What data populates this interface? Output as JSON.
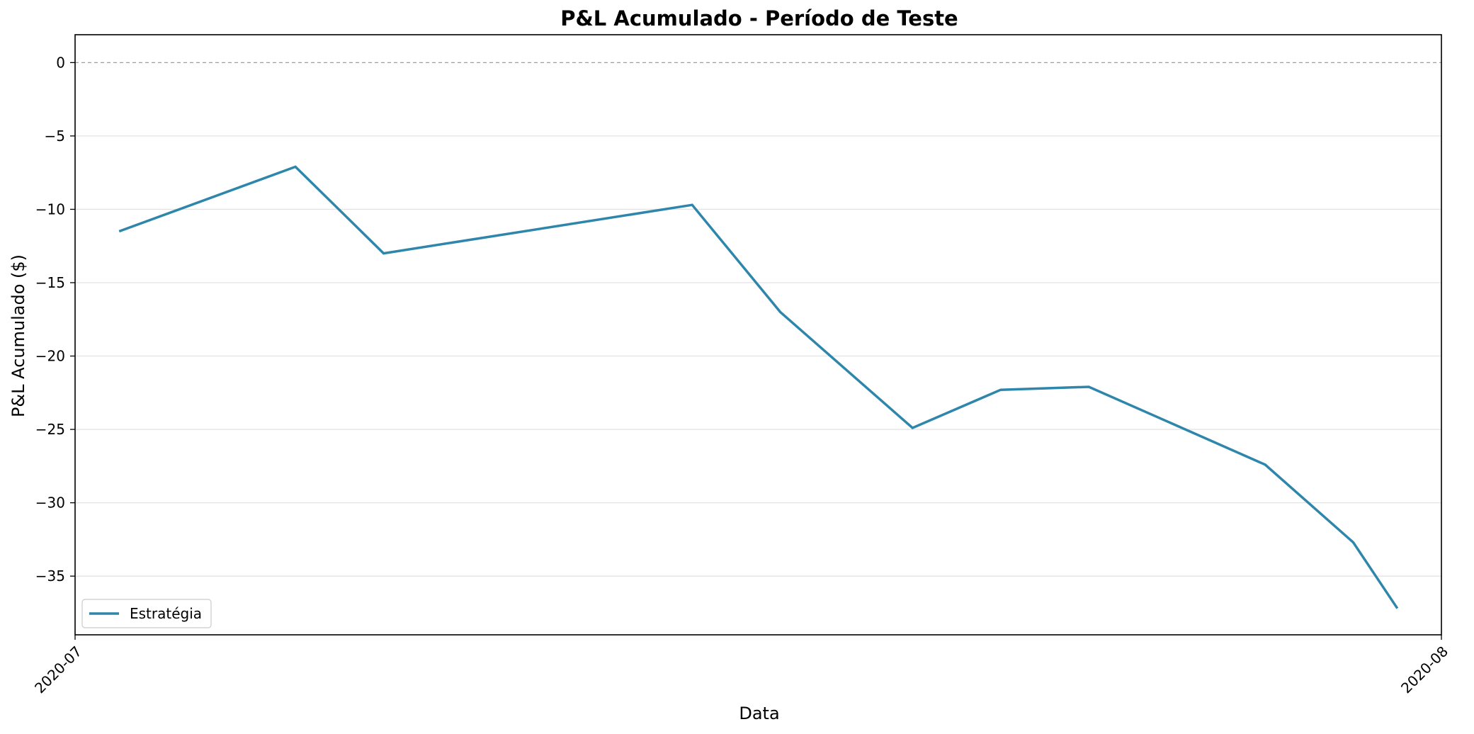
{
  "chart_data": {
    "type": "line",
    "title": "P&L Acumulado - Período de Teste",
    "xlabel": "Data",
    "ylabel": "P&L Acumulado ($)",
    "x_ticks": [
      "2020-07",
      "2020-08"
    ],
    "xlim": [
      "2020-07-01",
      "2020-08-01"
    ],
    "y_ticks": [
      0,
      -5,
      -10,
      -15,
      -20,
      -25,
      -30,
      -35
    ],
    "ylim": [
      -39.0,
      1.9
    ],
    "grid": "horizontal",
    "reference_line": 0,
    "legend_position": "lower left",
    "series": [
      {
        "name": "Estratégia",
        "color": "#2e86ab",
        "x": [
          "2020-07-02",
          "2020-07-06",
          "2020-07-08",
          "2020-07-15",
          "2020-07-17",
          "2020-07-20",
          "2020-07-22",
          "2020-07-24",
          "2020-07-28",
          "2020-07-30",
          "2020-07-31"
        ],
        "y": [
          -11.5,
          -7.1,
          -13.0,
          -9.7,
          -17.0,
          -24.9,
          -22.3,
          -22.1,
          -27.4,
          -32.7,
          -37.2
        ]
      }
    ]
  }
}
